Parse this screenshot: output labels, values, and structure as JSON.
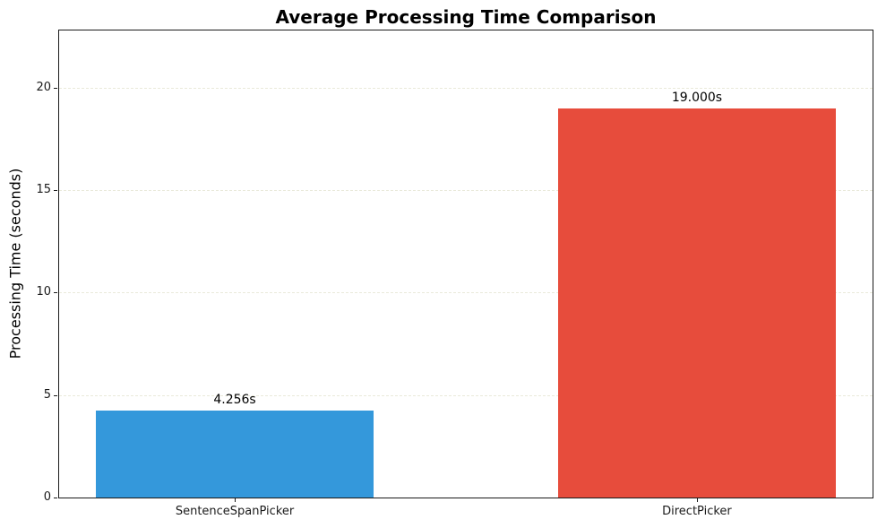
{
  "chart_data": {
    "type": "bar",
    "title": "Average Processing Time Comparison",
    "ylabel": "Processing Time (seconds)",
    "xlabel": "",
    "categories": [
      "SentenceSpanPicker",
      "DirectPicker"
    ],
    "values": [
      4.256,
      19.0
    ],
    "value_labels": [
      "4.256s",
      "19.000s"
    ],
    "bar_colors": [
      "#3498db",
      "#e74c3c"
    ],
    "ylim": [
      0,
      22.8
    ],
    "yticks": [
      0,
      5,
      10,
      15,
      20
    ],
    "grid": "horizontal dashed",
    "legend_position": "none"
  }
}
